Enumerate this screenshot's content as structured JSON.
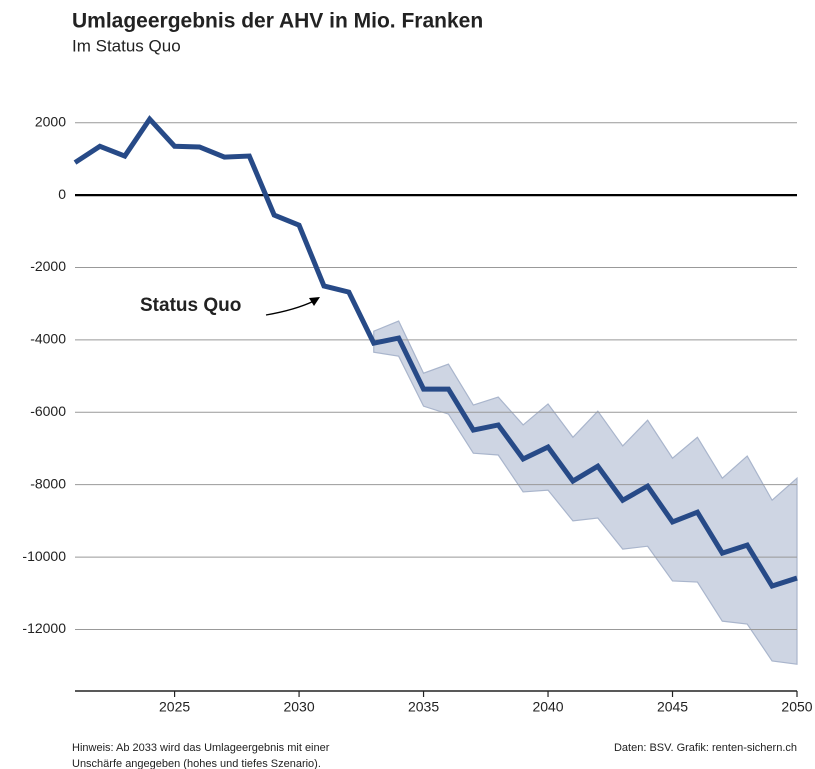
{
  "chart_data": {
    "type": "line",
    "title": "Umlageergebnis der AHV in Mio. Franken",
    "subtitle": "Im Status Quo",
    "x": [
      2021,
      2022,
      2023,
      2024,
      2025,
      2026,
      2027,
      2028,
      2029,
      2030,
      2031,
      2032,
      2033,
      2034,
      2035,
      2036,
      2037,
      2038,
      2039,
      2040,
      2041,
      2042,
      2043,
      2044,
      2045,
      2046,
      2047,
      2048,
      2049,
      2050
    ],
    "series": [
      {
        "name": "Status Quo",
        "color": "#274a87",
        "values": [
          900,
          1350,
          1080,
          2100,
          1350,
          1330,
          1050,
          1080,
          -550,
          -830,
          -2510,
          -2680,
          -4090,
          -3950,
          -5360,
          -5360,
          -6490,
          -6350,
          -7290,
          -6960,
          -7900,
          -7490,
          -8430,
          -8040,
          -9030,
          -8760,
          -9890,
          -9670,
          -10800,
          -10580
        ]
      }
    ],
    "band": {
      "color": "#ced5e3",
      "edge_color": "#a9b5cc",
      "upper": [
        null,
        null,
        null,
        null,
        null,
        null,
        null,
        null,
        null,
        null,
        null,
        null,
        -3760,
        -3480,
        -4920,
        -4670,
        -5800,
        -5580,
        -6350,
        -5770,
        -6690,
        -5970,
        -6930,
        -6220,
        -7270,
        -6690,
        -7820,
        -7210,
        -8430,
        -7820
      ],
      "lower": [
        null,
        null,
        null,
        null,
        null,
        null,
        null,
        null,
        null,
        null,
        null,
        null,
        -4340,
        -4450,
        -5830,
        -6050,
        -7130,
        -7180,
        -8200,
        -8150,
        -9000,
        -8920,
        -9780,
        -9700,
        -10660,
        -10690,
        -11770,
        -11850,
        -12870,
        -12960
      ]
    },
    "xlim": [
      2021,
      2050
    ],
    "xticks": [
      2025,
      2030,
      2035,
      2040,
      2045,
      2050
    ],
    "ylim": [
      -13700,
      2600
    ],
    "yticks": [
      -12000,
      -10000,
      -8000,
      -6000,
      -4000,
      -2000,
      0,
      2000
    ],
    "grid": true,
    "note": [
      "Hinweis: Ab 2033 wird das Umlageergebnis mit einer",
      "Unschärfe angegeben (hohes und tiefes Szenario)."
    ],
    "source": "Daten: BSV. Grafik: renten-sichern.ch"
  }
}
